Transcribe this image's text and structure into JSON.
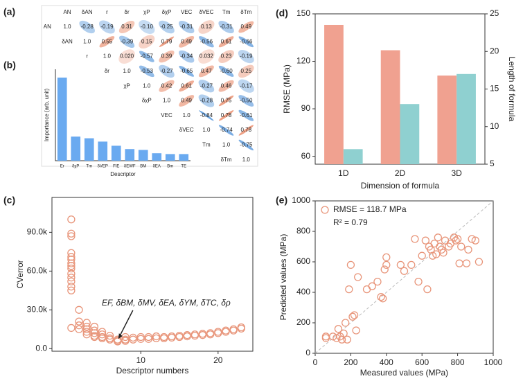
{
  "chart_data": [
    {
      "type": "correlation",
      "label": "(a)",
      "variables": [
        "AN",
        "δAN",
        "r",
        "δr",
        "χP",
        "δχP",
        "VEC",
        "δVEC",
        "Tm",
        "δTm"
      ],
      "positive_color": "#e8825e",
      "negative_color": "#4a8fd8",
      "values": [
        [
          1.0,
          -0.28,
          -0.19,
          0.31,
          -0.1,
          -0.25,
          -0.31,
          0.13,
          -0.31,
          0.49
        ],
        [
          1.0,
          0.55,
          -0.39,
          0.15,
          0.79,
          0.49,
          -0.56,
          0.61,
          -0.66
        ],
        [
          1.0,
          0.02,
          -0.57,
          0.39,
          -0.34,
          0.032,
          0.23,
          -0.19
        ],
        [
          1.0,
          -0.53,
          -0.27,
          -0.65,
          0.47,
          -0.6,
          0.25
        ],
        [
          1.0,
          0.42,
          0.61,
          -0.27,
          0.46,
          -0.17
        ],
        [
          1.0,
          0.49,
          -0.28,
          0.75,
          -0.5
        ],
        [
          1.0,
          -0.84,
          0.78,
          -0.61
        ],
        [
          1.0,
          -0.74,
          0.78
        ],
        [
          1.0,
          -0.75
        ],
        [
          1.0
        ]
      ],
      "value_labels": [
        [
          "1.0",
          "-0.28",
          "-0.19",
          "0.31",
          "-0.10",
          "-0.25",
          "-0.31",
          "0.13",
          "-0.31",
          "0.49"
        ],
        [
          "1.0",
          "0.55",
          "-0.39",
          "0.15",
          "0.79",
          "0.49",
          "-0.56",
          "0.61",
          "-0.66"
        ],
        [
          "1.0",
          "0.020",
          "-0.57",
          "0.39",
          "-0.34",
          "0.032",
          "0.23",
          "-0.19"
        ],
        [
          "1.0",
          "-0.53",
          "-0.27",
          "-0.65",
          "0.47",
          "-0.60",
          "0.25"
        ],
        [
          "1.0",
          "0.42",
          "0.61",
          "-0.27",
          "0.46",
          "-0.17"
        ],
        [
          "1.0",
          "0.49",
          "-0.28",
          "0.75",
          "-0.50"
        ],
        [
          "1.0",
          "-0.84",
          "0.78",
          "-0.61"
        ],
        [
          "1.0",
          "-0.74",
          "0.78"
        ],
        [
          "1.0",
          "-0.75"
        ],
        [
          "1.0"
        ]
      ]
    },
    {
      "type": "bar",
      "label": "(b)",
      "y_label": "Importance (arb. unit)",
      "x_label": "Descriptor",
      "categories": [
        "Er",
        "δχP",
        "Tm",
        "δVEP",
        "FIE",
        "δEWF",
        "BM",
        "δEA",
        "Bm",
        "TE"
      ],
      "values": [
        1.0,
        0.29,
        0.27,
        0.23,
        0.18,
        0.14,
        0.13,
        0.09,
        0.08,
        0.08
      ],
      "color": "#6aaaf0",
      "ylim": [
        0,
        1.1
      ]
    },
    {
      "type": "scatter",
      "label": "(c)",
      "x_label": "Descriptor numbers",
      "y_label": "CVerror",
      "annotation": "EF, δBM, δMV, δEA, δYM, δTC, δρ",
      "xlim": [
        -1.5,
        24.5
      ],
      "xticks": [
        10,
        20
      ],
      "ylim": [
        -2000,
        117000
      ],
      "yticks": [
        {
          "value": 0,
          "label": "0.0"
        },
        {
          "value": 30000,
          "label": "30.0k"
        },
        {
          "value": 60000,
          "label": "60.0k"
        },
        {
          "value": 90000,
          "label": "90.0k"
        }
      ],
      "series": [
        {
          "color": "#e8957a",
          "x": [
            1,
            1,
            1,
            1,
            1,
            1,
            1,
            1,
            1,
            1,
            1,
            1,
            1,
            1,
            1,
            2,
            2,
            2,
            2,
            3,
            3,
            3,
            3,
            3,
            4,
            4,
            4,
            4,
            4,
            5,
            5,
            5,
            5,
            6,
            6,
            6,
            7,
            7,
            7,
            8,
            8,
            8,
            9,
            9,
            10,
            10,
            11,
            11,
            12,
            12,
            13,
            13,
            14,
            14,
            15,
            15,
            16,
            16,
            17,
            17,
            18,
            18,
            19,
            19,
            20,
            20,
            21,
            21,
            22,
            22,
            23,
            23
          ],
          "values": [
            100000,
            89000,
            87000,
            74000,
            71000,
            69000,
            66000,
            64000,
            62000,
            58000,
            55000,
            52000,
            48000,
            45000,
            16000,
            30000,
            21000,
            18000,
            15000,
            20000,
            17000,
            15000,
            13000,
            11000,
            17000,
            14000,
            12000,
            10000,
            9000,
            13000,
            11000,
            9000,
            8000,
            10000,
            8000,
            7000,
            7000,
            6000,
            5500,
            9000,
            7000,
            6000,
            8500,
            7000,
            9000,
            7500,
            9000,
            7500,
            9500,
            8000,
            9000,
            8000,
            9500,
            8500,
            10000,
            9000,
            10500,
            9500,
            11000,
            10000,
            11500,
            10500,
            12000,
            11000,
            13000,
            12000,
            14000,
            13000,
            15000,
            14000,
            16500,
            15500
          ]
        }
      ]
    },
    {
      "type": "bar",
      "label": "(d)",
      "x_label": "Dimension of formula",
      "y_label": "RMSE (MPa)",
      "y2_label": "Length of formula",
      "categories": [
        "1D",
        "2D",
        "3D"
      ],
      "ylim": [
        55,
        150
      ],
      "yticks": [
        60,
        90,
        120,
        150
      ],
      "y2lim": [
        5,
        25
      ],
      "y2ticks": [
        5,
        10,
        15,
        20,
        25
      ],
      "series": [
        {
          "color": "#f0a190",
          "values": [
            143,
            127,
            111
          ]
        },
        {
          "color": "#8fd0d0",
          "axis": "y2",
          "values": [
            7,
            13,
            17
          ]
        }
      ]
    },
    {
      "type": "scatter",
      "label": "(e)",
      "x_label": "Measured values (MPa)",
      "y_label": "Predicted values (MPa)",
      "annotation": "R² = 0.79",
      "diagonal": true,
      "legend": "upper left",
      "xlim": [
        0,
        1000
      ],
      "xticks": [
        0,
        200,
        400,
        600,
        800,
        1000
      ],
      "ylim": [
        0,
        1000
      ],
      "yticks": [
        0,
        200,
        400,
        600,
        800,
        1000
      ],
      "series": [
        {
          "name": "RMSE = 118.7 MPa",
          "color": "#e8957a",
          "x": [
            60,
            60,
            100,
            120,
            130,
            140,
            150,
            160,
            170,
            180,
            190,
            200,
            210,
            220,
            230,
            240,
            290,
            320,
            350,
            370,
            380,
            390,
            400,
            400,
            480,
            500,
            540,
            560,
            580,
            600,
            620,
            630,
            640,
            650,
            660,
            670,
            680,
            690,
            700,
            710,
            720,
            730,
            750,
            760,
            780,
            790,
            800,
            810,
            820,
            850,
            860,
            880,
            900,
            920
          ],
          "values": [
            110,
            100,
            110,
            100,
            160,
            110,
            90,
            130,
            200,
            90,
            420,
            580,
            240,
            250,
            150,
            500,
            420,
            440,
            470,
            370,
            360,
            550,
            580,
            630,
            580,
            540,
            580,
            750,
            470,
            640,
            740,
            420,
            700,
            680,
            640,
            720,
            650,
            760,
            700,
            680,
            660,
            740,
            700,
            720,
            760,
            740,
            750,
            590,
            700,
            590,
            680,
            750,
            740,
            600
          ]
        }
      ]
    }
  ]
}
